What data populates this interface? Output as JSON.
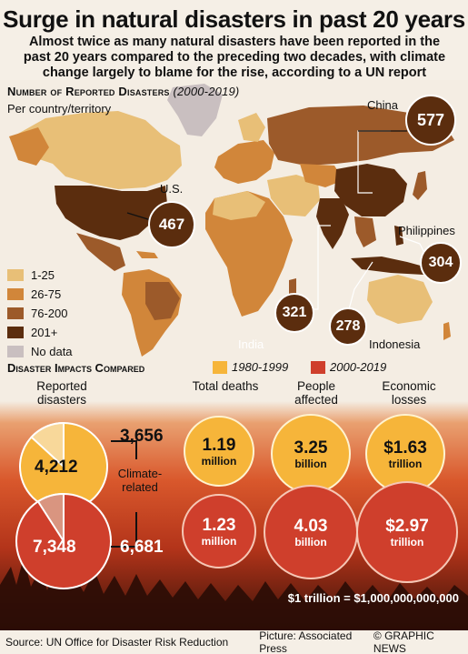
{
  "title": "Surge in natural disasters in past 20 years",
  "subtitle": "Almost twice as many natural disasters have been reported in the past 20 years compared to the preceding two decades, with climate change largely to blame for the rise, according to a UN report",
  "map": {
    "heading": "Number of Reported Disasters",
    "period": "(2000-2019)",
    "subheading": "Per country/territory",
    "legend": [
      {
        "label": "1-25",
        "color": "#e8bf77"
      },
      {
        "label": "26-75",
        "color": "#d1863a"
      },
      {
        "label": "76-200",
        "color": "#9c5a2a"
      },
      {
        "label": "201+",
        "color": "#5b2d0e"
      },
      {
        "label": "No data",
        "color": "#c9bfc0"
      }
    ],
    "callouts": [
      {
        "country": "U.S.",
        "value": "467"
      },
      {
        "country": "China",
        "value": "577"
      },
      {
        "country": "Philippines",
        "value": "304"
      },
      {
        "country": "India",
        "value": "321"
      },
      {
        "country": "Indonesia",
        "value": "278"
      }
    ]
  },
  "impacts": {
    "heading": "Disaster Impacts Compared",
    "legend": [
      {
        "label": "1980-1999",
        "color": "#f6b53a"
      },
      {
        "label": "2000-2019",
        "color": "#cf3f2c"
      }
    ],
    "reported": {
      "label": "Reported disasters",
      "total_1980_1999": "4,212",
      "total_2000_2019": "7,348",
      "climate_1980_1999": "3,656",
      "climate_2000_2019": "6,681",
      "climate_label": "Climate-related",
      "share_climate_1980_1999": 0.868,
      "share_climate_2000_2019": 0.909
    },
    "columns": [
      {
        "label": "Total deaths",
        "old_value": "1.19",
        "old_unit": "million",
        "new_value": "1.23",
        "new_unit": "million"
      },
      {
        "label": "People affected",
        "old_value": "3.25",
        "old_unit": "billion",
        "new_value": "4.03",
        "new_unit": "billion"
      },
      {
        "label": "Economic losses",
        "old_value": "$1.63",
        "old_unit": "trillion",
        "new_value": "$2.97",
        "new_unit": "trillion"
      }
    ],
    "note": "$1 trillion = $1,000,000,000,000"
  },
  "footer": {
    "source": "Source: UN Office for Disaster Risk Reduction",
    "picture": "Picture: Associated Press",
    "brand": "© GRAPHIC NEWS"
  }
}
